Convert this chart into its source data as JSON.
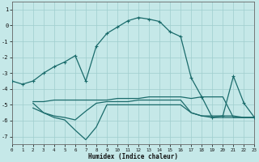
{
  "xlabel": "Humidex (Indice chaleur)",
  "bg_color": "#c5e8e8",
  "grid_color": "#9fcece",
  "line_color": "#1a6b6b",
  "xlim": [
    0,
    23
  ],
  "ylim": [
    -7.5,
    1.5
  ],
  "yticks": [
    1,
    0,
    -1,
    -2,
    -3,
    -4,
    -5,
    -6,
    -7
  ],
  "xticks": [
    0,
    1,
    2,
    3,
    4,
    5,
    6,
    7,
    8,
    9,
    10,
    11,
    12,
    13,
    14,
    15,
    16,
    17,
    18,
    19,
    20,
    21,
    22,
    23
  ],
  "line1_x": [
    0,
    1,
    2,
    3,
    4,
    5,
    6,
    7,
    8,
    9,
    10,
    11,
    12,
    13,
    14,
    15,
    16,
    17,
    18,
    19,
    20,
    21,
    22,
    23
  ],
  "line1_y": [
    -3.5,
    -3.7,
    -3.5,
    -3.0,
    -2.6,
    -2.3,
    -1.9,
    -3.5,
    -1.3,
    -0.5,
    -0.1,
    0.3,
    0.5,
    0.4,
    0.25,
    -0.4,
    -0.7,
    -3.3,
    -4.5,
    -5.8,
    -5.7,
    -3.2,
    -4.9,
    -5.8
  ],
  "line2_x": [
    2,
    3,
    4,
    5,
    6,
    7,
    8,
    9,
    10,
    11,
    12,
    13,
    14,
    15,
    16,
    17,
    18,
    19,
    20,
    21,
    22,
    23
  ],
  "line2_y": [
    -4.8,
    -4.8,
    -4.7,
    -4.7,
    -4.7,
    -4.7,
    -4.7,
    -4.7,
    -4.6,
    -4.6,
    -4.6,
    -4.5,
    -4.5,
    -4.5,
    -4.5,
    -4.6,
    -4.5,
    -4.5,
    -4.5,
    -5.8,
    -5.8,
    -5.8
  ],
  "line3_x": [
    2,
    3,
    4,
    5,
    6,
    7,
    8,
    9,
    10,
    11,
    12,
    13,
    14,
    15,
    16,
    17,
    18,
    19,
    20,
    21,
    22,
    23
  ],
  "line3_y": [
    -4.9,
    -5.5,
    -5.7,
    -5.8,
    -5.95,
    -5.4,
    -4.9,
    -4.8,
    -4.8,
    -4.8,
    -4.7,
    -4.7,
    -4.7,
    -4.7,
    -4.7,
    -5.5,
    -5.7,
    -5.7,
    -5.7,
    -5.7,
    -5.8,
    -5.8
  ],
  "line4_x": [
    2,
    3,
    4,
    5,
    6,
    7,
    8,
    9,
    10,
    11,
    12,
    13,
    14,
    15,
    16,
    17,
    18,
    19,
    20,
    21,
    22,
    23
  ],
  "line4_y": [
    -5.2,
    -5.5,
    -5.8,
    -5.95,
    -6.6,
    -7.2,
    -6.4,
    -5.0,
    -5.0,
    -5.0,
    -5.0,
    -5.0,
    -5.0,
    -5.0,
    -5.0,
    -5.5,
    -5.7,
    -5.8,
    -5.8,
    -5.8,
    -5.8,
    -5.8
  ]
}
